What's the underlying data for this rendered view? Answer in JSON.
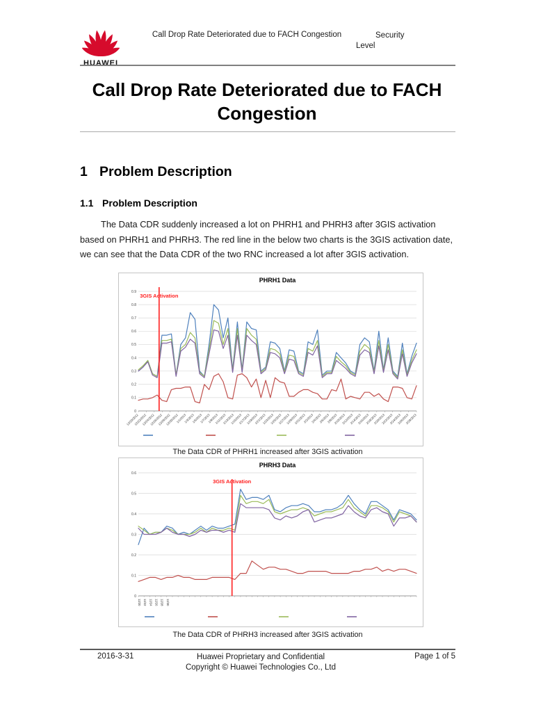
{
  "header": {
    "logo": "HUAWEI",
    "doc_title": "Call Drop Rate Deteriorated due to FACH Congestion",
    "security_label": "Security\nLevel"
  },
  "title": "Call Drop Rate Deteriorated due to FACH Congestion",
  "section": {
    "h1_number": "1",
    "h1_text": "Problem Description",
    "h2_number": "1.1",
    "h2_text": "Problem Description",
    "paragraph": "The Data CDR suddenly increased a lot on PHRH1 and PHRH3 after 3GIS activation based on PHRH1 and PHRH3. The red line in the below two charts is the 3GIS activation date, we can see that the Data CDR of the two RNC increased a lot after 3GIS activation."
  },
  "captions": {
    "chart1": "The Data CDR of PHRH1 increased after 3GIS activation",
    "chart2": "The Data CDR of PHRH3 increased after 3GIS activation"
  },
  "footer": {
    "date": "2016-3-31",
    "line1": "Huawei Proprietary and Confidential",
    "line2": "Copyright © Huawei Technologies Co., Ltd",
    "page": "Page 1 of 5"
  },
  "colors": {
    "series_blue": "#4f81bd",
    "series_red": "#c0504d",
    "series_green": "#9bbb59",
    "series_purple": "#8064a2",
    "activation_line": "#ff2020",
    "huawei_red": "#d60b2c"
  },
  "chart_data": [
    {
      "type": "line",
      "title": "PHRH1 Data",
      "xlabel": "",
      "ylabel": "",
      "ylim": [
        0,
        0.9
      ],
      "ytick": 0.1,
      "grid": true,
      "legend_position": "bottom",
      "x_labels": [
        "12/20/2012",
        "12/22/2012",
        "12/24/2012",
        "12/26/2012",
        "12/28/2012",
        "12/30/2012",
        "1/1/2013",
        "1/3/2013",
        "1/5/2013",
        "1/7/2013",
        "1/9/2013",
        "1/11/2013",
        "1/13/2013",
        "1/15/2013",
        "1/17/2013",
        "1/19/2013",
        "1/21/2013",
        "1/23/2013",
        "1/25/2013",
        "1/27/2013",
        "1/29/2013",
        "1/31/2013",
        "2/2/2013",
        "2/4/2013",
        "2/6/2013",
        "2/8/2013",
        "2/10/2013",
        "2/12/2013",
        "2/14/2013",
        "2/16/2013",
        "2/18/2013",
        "2/20/2013",
        "2/22/2013",
        "2/24/2013",
        "2/26/2013",
        "2/28/2013"
      ],
      "annotation": {
        "text": "3GIS Activation",
        "color": "#ff2020",
        "index": 4.4
      },
      "series": [
        {
          "name": "",
          "color": "#4f81bd",
          "values": [
            0.3,
            0.33,
            0.38,
            0.28,
            0.26,
            0.57,
            0.57,
            0.58,
            0.27,
            0.5,
            0.55,
            0.74,
            0.69,
            0.3,
            0.26,
            0.5,
            0.8,
            0.76,
            0.55,
            0.7,
            0.31,
            0.67,
            0.31,
            0.67,
            0.62,
            0.61,
            0.3,
            0.33,
            0.52,
            0.51,
            0.47,
            0.3,
            0.46,
            0.45,
            0.3,
            0.28,
            0.52,
            0.5,
            0.61,
            0.27,
            0.3,
            0.3,
            0.44,
            0.4,
            0.36,
            0.3,
            0.28,
            0.5,
            0.55,
            0.52,
            0.3,
            0.6,
            0.31,
            0.55,
            0.3,
            0.26,
            0.51,
            0.28,
            0.41,
            0.51
          ]
        },
        {
          "name": "",
          "color": "#c0504d",
          "values": [
            0.08,
            0.09,
            0.09,
            0.1,
            0.12,
            0.08,
            0.07,
            0.16,
            0.17,
            0.17,
            0.18,
            0.18,
            0.07,
            0.06,
            0.2,
            0.16,
            0.26,
            0.28,
            0.22,
            0.1,
            0.09,
            0.27,
            0.28,
            0.25,
            0.18,
            0.24,
            0.1,
            0.23,
            0.1,
            0.25,
            0.22,
            0.21,
            0.11,
            0.11,
            0.14,
            0.16,
            0.16,
            0.14,
            0.13,
            0.09,
            0.09,
            0.16,
            0.15,
            0.24,
            0.09,
            0.11,
            0.1,
            0.09,
            0.14,
            0.14,
            0.11,
            0.13,
            0.09,
            0.07,
            0.18,
            0.18,
            0.17,
            0.1,
            0.09,
            0.19
          ]
        },
        {
          "name": "",
          "color": "#9bbb59",
          "values": [
            0.31,
            0.34,
            0.38,
            0.28,
            0.26,
            0.53,
            0.53,
            0.54,
            0.27,
            0.47,
            0.5,
            0.59,
            0.55,
            0.29,
            0.26,
            0.46,
            0.68,
            0.66,
            0.5,
            0.62,
            0.3,
            0.62,
            0.3,
            0.62,
            0.57,
            0.54,
            0.29,
            0.32,
            0.47,
            0.46,
            0.43,
            0.29,
            0.42,
            0.41,
            0.29,
            0.27,
            0.47,
            0.45,
            0.53,
            0.26,
            0.29,
            0.29,
            0.41,
            0.37,
            0.34,
            0.29,
            0.27,
            0.45,
            0.5,
            0.47,
            0.29,
            0.53,
            0.3,
            0.5,
            0.29,
            0.25,
            0.46,
            0.27,
            0.38,
            0.46
          ]
        },
        {
          "name": "",
          "color": "#8064a2",
          "values": [
            0.3,
            0.33,
            0.37,
            0.27,
            0.25,
            0.51,
            0.51,
            0.52,
            0.26,
            0.45,
            0.48,
            0.54,
            0.51,
            0.28,
            0.25,
            0.43,
            0.61,
            0.6,
            0.47,
            0.57,
            0.29,
            0.57,
            0.29,
            0.57,
            0.53,
            0.5,
            0.28,
            0.31,
            0.44,
            0.43,
            0.4,
            0.28,
            0.39,
            0.38,
            0.28,
            0.26,
            0.44,
            0.42,
            0.49,
            0.25,
            0.28,
            0.28,
            0.38,
            0.35,
            0.32,
            0.28,
            0.26,
            0.42,
            0.46,
            0.44,
            0.28,
            0.49,
            0.29,
            0.46,
            0.28,
            0.24,
            0.43,
            0.26,
            0.36,
            0.43
          ]
        }
      ]
    },
    {
      "type": "line",
      "title": "PHRH3 Data",
      "xlabel": "",
      "ylabel": "",
      "ylim": [
        0,
        0.6
      ],
      "ytick": 0.1,
      "grid": true,
      "legend_position": "bottom",
      "x_labels": [
        "12/20",
        "12/22",
        "12/24",
        "12/26",
        "12/28",
        "12/30"
      ],
      "annotation": {
        "text": "3GIS Activation",
        "color": "#ff2020",
        "index": 16.5
      },
      "series": [
        {
          "name": "",
          "color": "#4f81bd",
          "values": [
            0.25,
            0.33,
            0.3,
            0.31,
            0.31,
            0.34,
            0.33,
            0.3,
            0.31,
            0.3,
            0.32,
            0.34,
            0.32,
            0.34,
            0.33,
            0.33,
            0.34,
            0.35,
            0.52,
            0.47,
            0.48,
            0.48,
            0.47,
            0.49,
            0.42,
            0.41,
            0.43,
            0.44,
            0.44,
            0.45,
            0.44,
            0.41,
            0.41,
            0.42,
            0.42,
            0.43,
            0.45,
            0.49,
            0.45,
            0.42,
            0.4,
            0.46,
            0.46,
            0.44,
            0.42,
            0.37,
            0.42,
            0.41,
            0.4,
            0.37
          ]
        },
        {
          "name": "",
          "color": "#c0504d",
          "values": [
            0.07,
            0.08,
            0.09,
            0.09,
            0.08,
            0.09,
            0.09,
            0.1,
            0.09,
            0.09,
            0.08,
            0.08,
            0.08,
            0.09,
            0.09,
            0.09,
            0.09,
            0.08,
            0.11,
            0.11,
            0.17,
            0.15,
            0.13,
            0.14,
            0.14,
            0.13,
            0.13,
            0.12,
            0.11,
            0.11,
            0.12,
            0.12,
            0.12,
            0.12,
            0.11,
            0.11,
            0.11,
            0.11,
            0.12,
            0.12,
            0.13,
            0.13,
            0.14,
            0.12,
            0.13,
            0.12,
            0.13,
            0.13,
            0.12,
            0.11
          ]
        },
        {
          "name": "",
          "color": "#9bbb59",
          "values": [
            0.34,
            0.32,
            0.3,
            0.31,
            0.31,
            0.33,
            0.32,
            0.3,
            0.3,
            0.3,
            0.31,
            0.33,
            0.31,
            0.33,
            0.32,
            0.32,
            0.33,
            0.32,
            0.49,
            0.45,
            0.46,
            0.46,
            0.45,
            0.47,
            0.41,
            0.4,
            0.41,
            0.42,
            0.42,
            0.43,
            0.42,
            0.39,
            0.4,
            0.41,
            0.41,
            0.42,
            0.43,
            0.47,
            0.43,
            0.41,
            0.39,
            0.44,
            0.44,
            0.43,
            0.41,
            0.36,
            0.41,
            0.4,
            0.39,
            0.36
          ]
        },
        {
          "name": "",
          "color": "#8064a2",
          "values": [
            0.33,
            0.3,
            0.3,
            0.3,
            0.31,
            0.33,
            0.31,
            0.3,
            0.3,
            0.29,
            0.3,
            0.32,
            0.31,
            0.32,
            0.32,
            0.31,
            0.32,
            0.31,
            0.45,
            0.43,
            0.43,
            0.43,
            0.43,
            0.42,
            0.38,
            0.37,
            0.39,
            0.38,
            0.39,
            0.41,
            0.42,
            0.36,
            0.37,
            0.38,
            0.38,
            0.39,
            0.4,
            0.44,
            0.41,
            0.39,
            0.38,
            0.42,
            0.43,
            0.41,
            0.4,
            0.34,
            0.38,
            0.38,
            0.39,
            0.36
          ]
        }
      ]
    }
  ]
}
